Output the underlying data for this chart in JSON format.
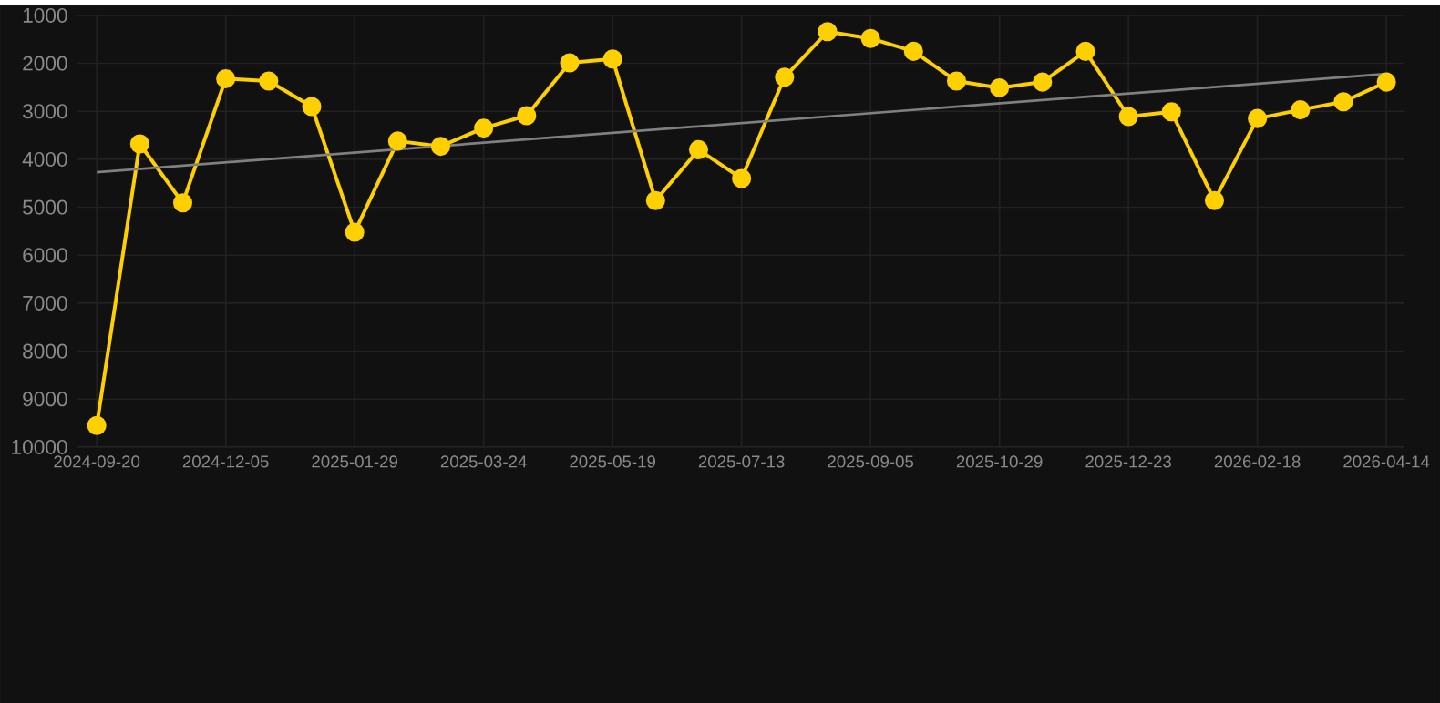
{
  "chart_data": {
    "type": "line",
    "categories": [
      "2024-09-20",
      null,
      null,
      "2024-12-05",
      null,
      null,
      "2025-01-29",
      null,
      null,
      "2025-03-24",
      null,
      null,
      "2025-05-19",
      null,
      null,
      "2025-07-13",
      null,
      null,
      "2025-09-05",
      null,
      null,
      "2025-10-29",
      null,
      null,
      "2025-12-23",
      null,
      null,
      "2026-02-18",
      null,
      null,
      "2026-04-14"
    ],
    "series": [
      {
        "color": "#ffd000",
        "marker": "circle",
        "values": [
          9550,
          3680,
          4910,
          2320,
          2370,
          2900,
          5520,
          3620,
          3730,
          3350,
          3090,
          1990,
          1910,
          4860,
          3800,
          4400,
          2290,
          1340,
          1480,
          1750,
          2370,
          2510,
          2390,
          1750,
          3110,
          3010,
          4860,
          3150,
          2970,
          2800,
          2390
        ]
      },
      {
        "type": "line",
        "color": "#808080",
        "marker": "none",
        "values": [
          4270,
          null,
          null,
          null,
          null,
          null,
          null,
          null,
          null,
          null,
          null,
          null,
          null,
          null,
          null,
          null,
          null,
          null,
          null,
          null,
          null,
          null,
          null,
          null,
          null,
          null,
          null,
          null,
          null,
          null,
          2220
        ]
      }
    ],
    "ylim": [
      10000,
      1000
    ],
    "yticks": [
      1000,
      2000,
      3000,
      4000,
      5000,
      6000,
      7000,
      8000,
      9000,
      10000
    ],
    "grid": true,
    "line_style": "solid"
  }
}
